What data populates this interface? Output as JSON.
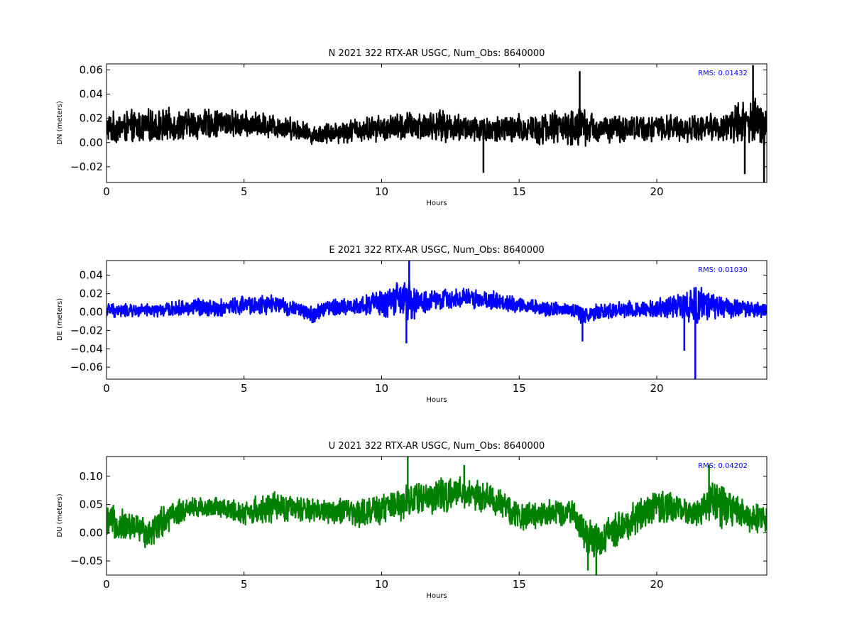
{
  "chart_data": [
    {
      "type": "line",
      "title": "N 2021 322 RTX-AR  USGC, Num_Obs: 8640000",
      "xlabel": "Hours",
      "ylabel": "DN (meters)",
      "xlim": [
        0,
        24
      ],
      "ylim": [
        -0.033,
        0.065
      ],
      "xticks": [
        0,
        5,
        10,
        15,
        20
      ],
      "yticks": [
        -0.02,
        0.0,
        0.02,
        0.04,
        0.06
      ],
      "ytick_labels": [
        "−0.02",
        "0.00",
        "0.02",
        "0.04",
        "0.06"
      ],
      "color": "#000000",
      "rms_label": "RMS:  0.01432",
      "rms_color": "#0000ff",
      "grid": false,
      "series": [
        {
          "x": [
            0,
            1,
            2,
            3,
            4,
            5,
            6,
            7,
            7.5,
            8,
            9,
            10,
            11,
            12,
            13,
            14,
            15,
            16,
            16.5,
            17,
            17.2,
            17.5,
            18,
            19,
            20,
            21,
            22,
            22.5,
            23,
            23.5,
            24
          ],
          "center": [
            0.012,
            0.013,
            0.014,
            0.015,
            0.016,
            0.015,
            0.014,
            0.011,
            0.006,
            0.008,
            0.01,
            0.012,
            0.013,
            0.014,
            0.012,
            0.01,
            0.011,
            0.012,
            0.013,
            0.012,
            0.013,
            0.012,
            0.011,
            0.012,
            0.012,
            0.012,
            0.013,
            0.013,
            0.016,
            0.018,
            0.014
          ],
          "spread": [
            0.014,
            0.015,
            0.015,
            0.014,
            0.013,
            0.012,
            0.011,
            0.01,
            0.008,
            0.01,
            0.011,
            0.012,
            0.014,
            0.014,
            0.013,
            0.013,
            0.014,
            0.015,
            0.016,
            0.016,
            0.02,
            0.015,
            0.013,
            0.012,
            0.012,
            0.012,
            0.012,
            0.014,
            0.02,
            0.023,
            0.017
          ],
          "peaks": [
            [
              17.2,
              0.059
            ],
            [
              23.5,
              0.064
            ],
            [
              23.9,
              -0.033
            ],
            [
              23.2,
              -0.026
            ],
            [
              13.7,
              -0.025
            ]
          ]
        }
      ]
    },
    {
      "type": "line",
      "title": "E 2021 322 RTX-AR  USGC, Num_Obs: 8640000",
      "xlabel": "Hours",
      "ylabel": "DE (meters)",
      "xlim": [
        0,
        24
      ],
      "ylim": [
        -0.073,
        0.056
      ],
      "xticks": [
        0,
        5,
        10,
        15,
        20
      ],
      "yticks": [
        -0.06,
        -0.04,
        -0.02,
        0.0,
        0.02,
        0.04
      ],
      "ytick_labels": [
        "−0.06",
        "−0.04",
        "−0.02",
        "0.00",
        "0.02",
        "0.04"
      ],
      "color": "#0000ff",
      "rms_label": "RMS:  0.01030",
      "rms_color": "#0000ff",
      "grid": false,
      "series": [
        {
          "x": [
            0,
            1,
            2,
            3,
            3.5,
            4,
            5,
            6,
            7,
            7.5,
            8,
            9,
            10,
            10.5,
            11,
            11.5,
            12,
            13,
            14,
            15,
            16,
            17,
            17.3,
            18,
            19,
            20,
            21,
            21.5,
            22,
            23,
            24
          ],
          "center": [
            0.002,
            0.001,
            0.002,
            0.005,
            0.006,
            0.004,
            0.007,
            0.008,
            0.003,
            -0.004,
            0.005,
            0.006,
            0.01,
            0.013,
            0.012,
            0.01,
            0.013,
            0.016,
            0.012,
            0.008,
            0.004,
            0.002,
            -0.004,
            0.002,
            0.003,
            0.004,
            0.006,
            0.007,
            0.006,
            0.004,
            0.002
          ],
          "spread": [
            0.009,
            0.008,
            0.008,
            0.01,
            0.012,
            0.01,
            0.012,
            0.012,
            0.008,
            0.012,
            0.01,
            0.01,
            0.017,
            0.022,
            0.024,
            0.016,
            0.012,
            0.012,
            0.012,
            0.01,
            0.009,
            0.009,
            0.011,
            0.01,
            0.011,
            0.012,
            0.018,
            0.024,
            0.018,
            0.01,
            0.009
          ],
          "peaks": [
            [
              11.0,
              0.056
            ],
            [
              21.4,
              -0.073
            ],
            [
              10.9,
              -0.034
            ],
            [
              17.3,
              -0.032
            ],
            [
              21.0,
              -0.042
            ]
          ]
        }
      ]
    },
    {
      "type": "line",
      "title": "U 2021 322 RTX-AR  USGC, Num_Obs: 8640000",
      "xlabel": "Hours",
      "ylabel": "DU (meters)",
      "xlim": [
        0,
        24
      ],
      "ylim": [
        -0.075,
        0.135
      ],
      "xticks": [
        0,
        5,
        10,
        15,
        20
      ],
      "yticks": [
        -0.05,
        0.0,
        0.05,
        0.1
      ],
      "ytick_labels": [
        "−0.05",
        "0.00",
        "0.05",
        "0.10"
      ],
      "color": "#008000",
      "rms_label": "RMS:  0.04202",
      "rms_color": "#0000ff",
      "grid": false,
      "series": [
        {
          "x": [
            0,
            1,
            1.5,
            2,
            3,
            4,
            5,
            6,
            7,
            8,
            9,
            10,
            11,
            12,
            13,
            14,
            14.5,
            15,
            16,
            17,
            17.5,
            18,
            19,
            20,
            21,
            21.5,
            22,
            23,
            24
          ],
          "center": [
            0.018,
            0.01,
            0.0,
            0.02,
            0.045,
            0.045,
            0.035,
            0.045,
            0.04,
            0.04,
            0.035,
            0.04,
            0.06,
            0.065,
            0.07,
            0.06,
            0.045,
            0.03,
            0.035,
            0.035,
            -0.015,
            -0.01,
            0.02,
            0.05,
            0.04,
            0.035,
            0.055,
            0.035,
            0.025
          ],
          "spread": [
            0.035,
            0.03,
            0.03,
            0.032,
            0.022,
            0.02,
            0.025,
            0.03,
            0.025,
            0.025,
            0.028,
            0.03,
            0.035,
            0.035,
            0.03,
            0.03,
            0.03,
            0.03,
            0.025,
            0.022,
            0.04,
            0.035,
            0.032,
            0.035,
            0.025,
            0.03,
            0.045,
            0.035,
            0.03
          ],
          "peaks": [
            [
              10.95,
              0.135
            ],
            [
              17.8,
              -0.075
            ],
            [
              17.5,
              -0.067
            ],
            [
              13.0,
              0.12
            ],
            [
              21.9,
              0.12
            ]
          ]
        }
      ]
    }
  ]
}
